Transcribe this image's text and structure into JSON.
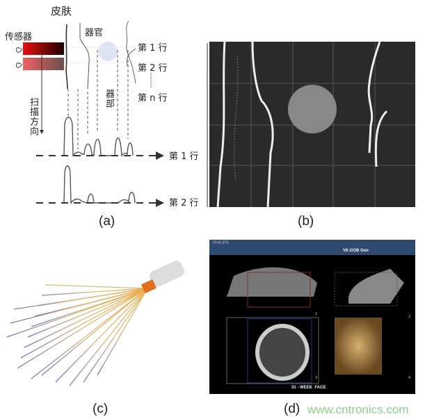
{
  "panel_a": {
    "skin_label": "皮肤",
    "organ_label": "器官",
    "sensor_label": "传感器",
    "scan_direction_label": "扫描方向",
    "path_label": "器部",
    "row_labels_top": [
      "第 1 行",
      "第 2 行",
      "第 n 行"
    ],
    "row_labels_bottom": [
      "第 1 行",
      "第 2 行"
    ],
    "caption": "(a)"
  },
  "panel_b": {
    "caption": "(b)"
  },
  "panel_c": {
    "caption": "(c)"
  },
  "panel_d": {
    "brand": "PHILIPS",
    "mode": "V6-2/OB Gen",
    "view_numbers": [
      "1",
      "2",
      "3",
      "4"
    ],
    "footer": "31 - WEEK  FACE",
    "caption": "(d)"
  },
  "watermark": "www.cntronics.com",
  "colors": {
    "sensor_red": "#e01010",
    "grid_bg": "#2a2a2a",
    "ultrasound_header": "#2e4a6e",
    "watermark": "#8ccf8c"
  }
}
